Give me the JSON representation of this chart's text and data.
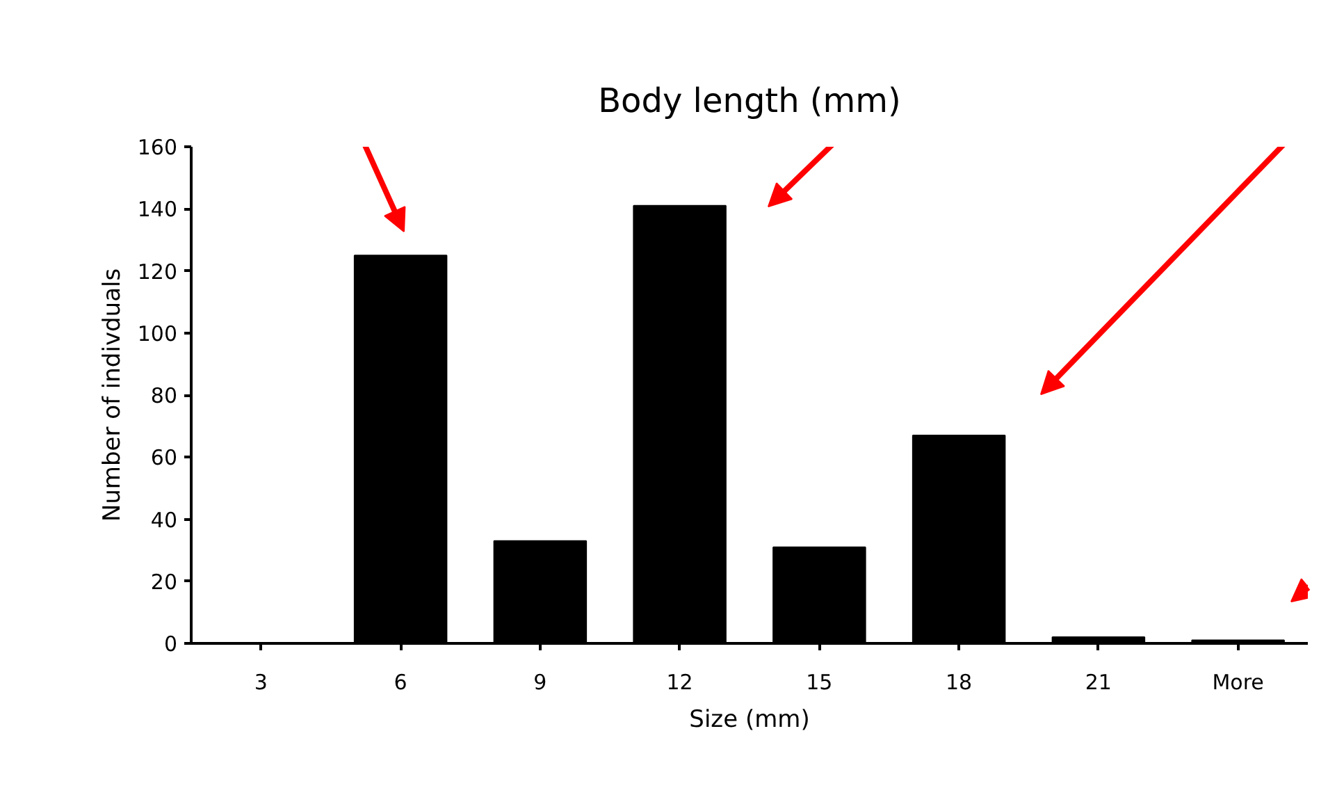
{
  "chart_data": {
    "type": "bar",
    "title": "Body length (mm)",
    "xlabel": "Size (mm)",
    "ylabel": "Number of indivduals",
    "categories": [
      "3",
      "6",
      "9",
      "12",
      "15",
      "18",
      "21",
      "More"
    ],
    "values": [
      0,
      125,
      33,
      141,
      31,
      67,
      2,
      1
    ],
    "color": "#000000",
    "ylim": [
      0,
      160
    ],
    "yticks": [
      0,
      20,
      40,
      60,
      80,
      100,
      120,
      140,
      160
    ],
    "grid": false
  }
}
